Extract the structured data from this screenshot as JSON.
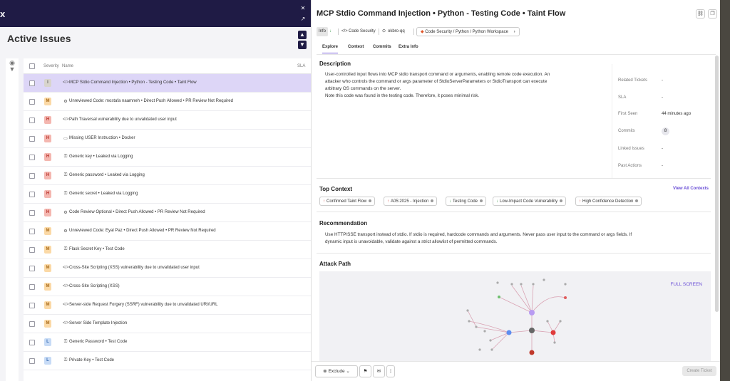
{
  "app": {
    "logo": "x"
  },
  "list": {
    "title": "Active Issues",
    "columns": {
      "severity": "Severity",
      "name": "Name",
      "sla": "SLA"
    },
    "rows": [
      {
        "severity": "I",
        "icon": "code-icon",
        "glyph": "</>",
        "name": "MCP Stdio Command Injection • Python - Testing Code • Taint Flow",
        "selected": true
      },
      {
        "severity": "M",
        "icon": "gears-icon",
        "glyph": "⚙",
        "name": "Unreviewed Code: mostafa naamneh • Direct Push Allowed • PR Review Not Required"
      },
      {
        "severity": "H",
        "icon": "code-icon",
        "glyph": "</>",
        "name": "Path Traversal vulnerability due to unvalidated user input"
      },
      {
        "severity": "H",
        "icon": "monitor-icon",
        "glyph": "▭",
        "name": "Missing USER Instruction • Docker"
      },
      {
        "severity": "H",
        "icon": "key-icon",
        "glyph": "⚿",
        "name": "Generic key • Leaked via Logging"
      },
      {
        "severity": "H",
        "icon": "key-icon",
        "glyph": "⚿",
        "name": "Generic password • Leaked via Logging"
      },
      {
        "severity": "H",
        "icon": "key-icon",
        "glyph": "⚿",
        "name": "Generic secret • Leaked via Logging"
      },
      {
        "severity": "H",
        "icon": "gears-icon",
        "glyph": "⚙",
        "name": "Code Review Optional • Direct Push Allowed • PR Review Not Required"
      },
      {
        "severity": "M",
        "icon": "gears-icon",
        "glyph": "⚙",
        "name": "Unreviewed Code: Eyal Paz • Direct Push Allowed • PR Review Not Required"
      },
      {
        "severity": "M",
        "icon": "key-icon",
        "glyph": "⚿",
        "name": "Flask Secret Key • Test Code"
      },
      {
        "severity": "M",
        "icon": "code-icon",
        "glyph": "</>",
        "name": "Cross-Site Scripting (XSS) vulnerability due to unvalidated user input"
      },
      {
        "severity": "M",
        "icon": "code-icon",
        "glyph": "</>",
        "name": "Cross-Site Scripting (XSS)"
      },
      {
        "severity": "M",
        "icon": "code-icon",
        "glyph": "</>",
        "name": "Server-side Request Forgery (SSRF) vulnerability due to unvalidated URI/URL"
      },
      {
        "severity": "M",
        "icon": "code-icon",
        "glyph": "</>",
        "name": "Server Side Template Injection"
      },
      {
        "severity": "L",
        "icon": "key-icon",
        "glyph": "⚿",
        "name": "Generic Password • Test Code"
      },
      {
        "severity": "L",
        "icon": "key-icon",
        "glyph": "⚿",
        "name": "Private Key • Test Code"
      }
    ]
  },
  "detail": {
    "title": "MCP Stdio Command Injection • Python - Testing Code • Taint Flow",
    "tags": {
      "info": "Info",
      "category": "Code Security",
      "repo": "okbro-qq",
      "path": "Code Security / Python / Python Workspace"
    },
    "tabs": [
      "Explore",
      "Context",
      "Commits",
      "Extra Info"
    ],
    "description": {
      "heading": "Description",
      "lines": [
        "User-controlled input flows into MCP stdio transport command or arguments, enabling remote code execution. An",
        "attacker who controls the command or args parameter of StdioServerParameters or StdioTransport can execute",
        "arbitrary OS commands on the server.",
        "Note this code was found in the testing code. Therefore, it poses minimal risk."
      ]
    },
    "meta": [
      {
        "label": "Related Tickets",
        "value": "-"
      },
      {
        "label": "SLA",
        "value": "-"
      },
      {
        "label": "First Seen",
        "value": "44 minutes ago"
      },
      {
        "label": "Commits",
        "value": "8"
      },
      {
        "label": "Linked Issues",
        "value": "-"
      },
      {
        "label": "Past Actions",
        "value": "-"
      }
    ],
    "top_context": {
      "heading": "Top Context",
      "link": "View All Contexts",
      "items": [
        {
          "label": "Confirmed Taint Flow",
          "dir": "up"
        },
        {
          "label": "A05:2025 - Injection",
          "dir": "up"
        },
        {
          "label": "Testing Code",
          "dir": "down"
        },
        {
          "label": "Low-Impact Code Vulnerability",
          "dir": "down"
        },
        {
          "label": "High Confidence Detection",
          "dir": "up"
        }
      ]
    },
    "recommendation": {
      "heading": "Recommendation",
      "lines": [
        "Use HTTP/SSE transport instead of stdio. If stdio is required, hardcode commands and arguments. Never pass user input to the command or args fields. If",
        "dynamic input is unavoidable, validate against a strict allowlist of permitted commands."
      ]
    },
    "attack_path": {
      "heading": "Attack Path",
      "fullscreen": "FULL SCREEN"
    },
    "footer": {
      "exclude": "Exclude",
      "create_ticket": "Create Ticket"
    }
  },
  "colors": {
    "accent": "#6a4fd6",
    "topbar": "#1f1b45",
    "selected_row": "#ddd6f7"
  }
}
